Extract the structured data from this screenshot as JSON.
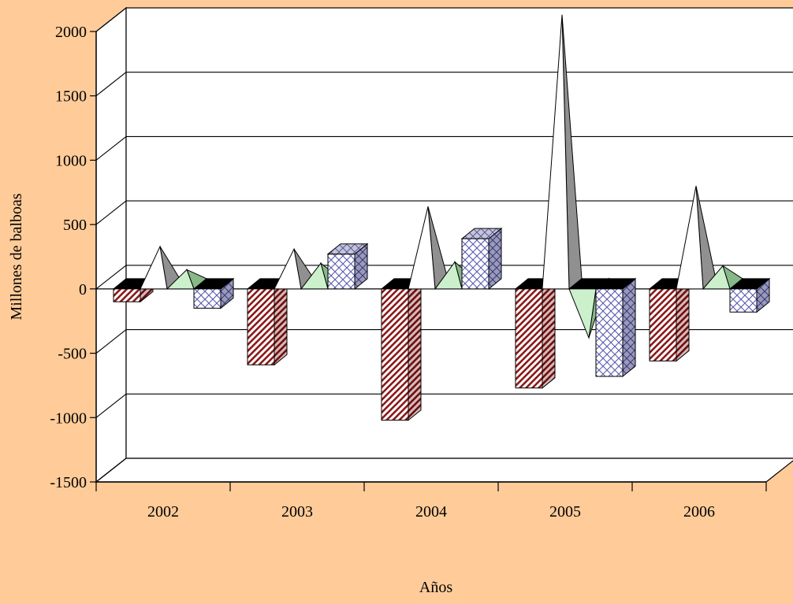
{
  "chart_data": {
    "type": "bar",
    "title": "",
    "xlabel": "Años",
    "ylabel": "Millones de balboas",
    "categories": [
      "2002",
      "2003",
      "2004",
      "2005",
      "2006"
    ],
    "ylim": [
      -1500,
      2000
    ],
    "yticks": [
      "-1500",
      "-1000",
      "-500",
      "0",
      "500",
      "1000",
      "1500",
      "2000"
    ],
    "grid": true,
    "series": [
      {
        "values": [
          -100,
          -590,
          -1020,
          -770,
          -560
        ],
        "shape": "box",
        "color": "#8b1a1a",
        "pattern": "diagonal-stripes"
      },
      {
        "values": [
          290,
          270,
          600,
          2090,
          760
        ],
        "shape": "pyramid",
        "color": "#909090"
      },
      {
        "values": [
          110,
          160,
          170,
          -420,
          140
        ],
        "shape": "pyramid",
        "color": "#99cc99"
      },
      {
        "values": [
          -150,
          270,
          390,
          -680,
          -180
        ],
        "shape": "box",
        "color": "#6666aa",
        "pattern": "crosshatch"
      }
    ],
    "legend": "none"
  }
}
